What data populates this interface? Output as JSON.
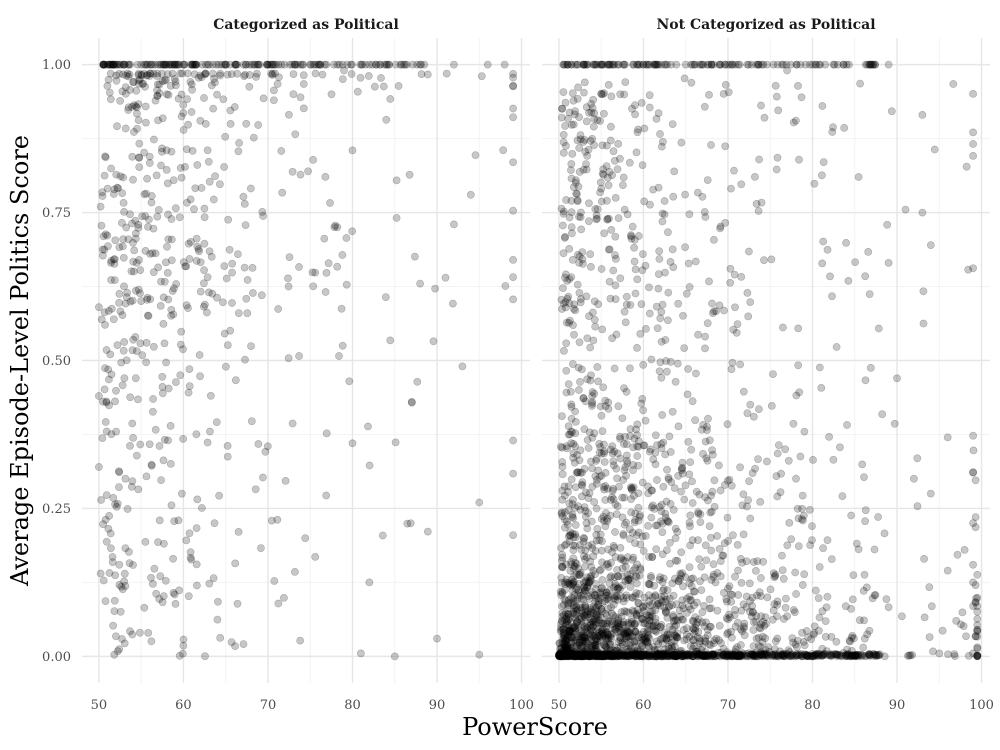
{
  "chart_data": {
    "type": "scatter",
    "xlabel": "PowerScore",
    "ylabel": "Average Episode-Level Politics Score",
    "xlim": [
      48,
      101
    ],
    "ylim": [
      -0.045,
      1.045
    ],
    "x_ticks": [
      50,
      60,
      70,
      80,
      90,
      100
    ],
    "y_ticks": [
      0.0,
      0.25,
      0.5,
      0.75,
      1.0
    ],
    "x_tick_labels": [
      "50",
      "60",
      "70",
      "80",
      "90",
      "100"
    ],
    "y_tick_labels": [
      "0.00",
      "0.25",
      "0.50",
      "0.75",
      "1.00"
    ],
    "grid": true,
    "legend": "none",
    "point_color": "#000000",
    "point_alpha": 0.22,
    "panels": [
      {
        "title": "Categorized as Political",
        "sample_points": [
          {
            "x": 51,
            "y": 1.0
          },
          {
            "x": 53,
            "y": 1.0
          },
          {
            "x": 55,
            "y": 1.0
          },
          {
            "x": 58,
            "y": 1.0
          },
          {
            "x": 61,
            "y": 1.0
          },
          {
            "x": 65,
            "y": 1.0
          },
          {
            "x": 70,
            "y": 1.0
          },
          {
            "x": 75,
            "y": 1.0
          },
          {
            "x": 79,
            "y": 0.99
          },
          {
            "x": 84,
            "y": 1.0
          },
          {
            "x": 88,
            "y": 1.0
          },
          {
            "x": 92,
            "y": 1.0
          },
          {
            "x": 96,
            "y": 1.0
          },
          {
            "x": 98,
            "y": 1.0
          },
          {
            "x": 80,
            "y": 0.855
          },
          {
            "x": 99,
            "y": 0.835
          },
          {
            "x": 94,
            "y": 0.78
          },
          {
            "x": 92,
            "y": 0.73
          },
          {
            "x": 50.2,
            "y": 0.76
          },
          {
            "x": 99,
            "y": 0.67
          },
          {
            "x": 91,
            "y": 0.64
          },
          {
            "x": 88,
            "y": 0.63
          },
          {
            "x": 50,
            "y": 0.59
          },
          {
            "x": 93,
            "y": 0.49
          },
          {
            "x": 50,
            "y": 0.44
          },
          {
            "x": 87,
            "y": 0.43
          },
          {
            "x": 80,
            "y": 0.36
          },
          {
            "x": 50,
            "y": 0.32
          },
          {
            "x": 95,
            "y": 0.26
          },
          {
            "x": 99,
            "y": 0.205
          },
          {
            "x": 50.2,
            "y": 0.14
          },
          {
            "x": 82,
            "y": 0.125
          },
          {
            "x": 90,
            "y": 0.03
          },
          {
            "x": 81,
            "y": 0.005
          },
          {
            "x": 85,
            "y": 0.0
          },
          {
            "x": 95,
            "y": 0.003
          }
        ]
      },
      {
        "title": "Not Categorized as Political",
        "sample_points": [
          {
            "x": 51,
            "y": 1.0
          },
          {
            "x": 55,
            "y": 1.0
          },
          {
            "x": 60,
            "y": 1.0
          },
          {
            "x": 65,
            "y": 1.0
          },
          {
            "x": 70,
            "y": 1.0
          },
          {
            "x": 74,
            "y": 1.0
          },
          {
            "x": 77,
            "y": 0.99
          },
          {
            "x": 83,
            "y": 1.0
          },
          {
            "x": 87,
            "y": 1.0
          },
          {
            "x": 89,
            "y": 1.0
          },
          {
            "x": 93,
            "y": 0.915
          },
          {
            "x": 91,
            "y": 0.755
          },
          {
            "x": 93,
            "y": 0.75
          },
          {
            "x": 94,
            "y": 0.695
          },
          {
            "x": 89,
            "y": 0.665
          },
          {
            "x": 90,
            "y": 0.47
          },
          {
            "x": 96,
            "y": 0.37
          },
          {
            "x": 92,
            "y": 0.3
          },
          {
            "x": 94,
            "y": 0.275
          },
          {
            "x": 98,
            "y": 0.18
          },
          {
            "x": 99,
            "y": 0.125
          },
          {
            "x": 99,
            "y": 0.085
          },
          {
            "x": 96,
            "y": 0.145
          },
          {
            "x": 97,
            "y": 0.06
          },
          {
            "x": 99,
            "y": 0.005
          },
          {
            "x": 95,
            "y": 0.005
          },
          {
            "x": 52,
            "y": 0.0
          },
          {
            "x": 60,
            "y": 0.0
          },
          {
            "x": 70,
            "y": 0.0
          },
          {
            "x": 80,
            "y": 0.0
          },
          {
            "x": 55,
            "y": 0.08
          },
          {
            "x": 62,
            "y": 0.05
          },
          {
            "x": 70,
            "y": 0.04
          },
          {
            "x": 78,
            "y": 0.02
          },
          {
            "x": 86,
            "y": 0.015
          }
        ]
      }
    ]
  }
}
